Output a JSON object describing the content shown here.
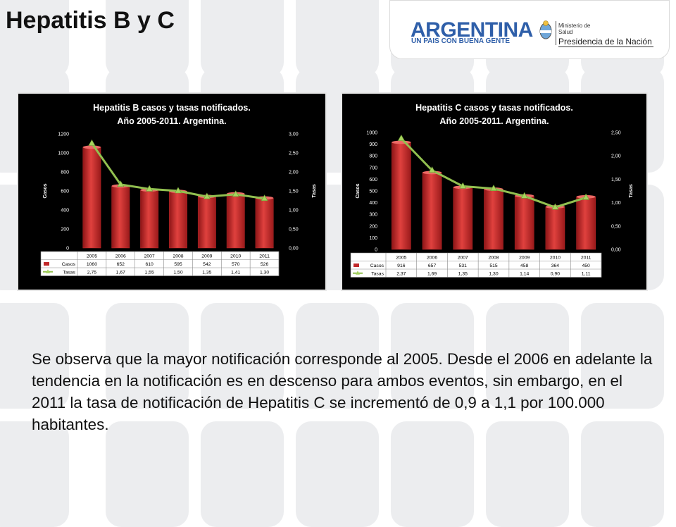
{
  "page": {
    "title": "Hepatitis B y C",
    "body_text": "Se observa que la mayor notificación corresponde al 2005. Desde el 2006 en adelante la tendencia en la notificación es en descenso para ambos eventos, sin embargo, en el 2011 la tasa de notificación de Hepatitis C se incrementó de 0,9 a 1,1 por 100.000 habitantes."
  },
  "banner": {
    "brand": "ARGENTINA",
    "slogan": "UN PAIS CON BUENA GENTE",
    "ministry_line1": "Ministerio de",
    "ministry_line2": "Salud",
    "presidency": "Presidencia de la Nación"
  },
  "colors": {
    "bar": "#c0282a",
    "line": "#92c050",
    "chart_bg": "#000000",
    "tile": "#ecedef"
  },
  "chart_data": [
    {
      "type": "bar",
      "title_line1": "Hepatitis B casos y tasas notificados.",
      "title_line2": "Año 2005-2011.  Argentina.",
      "categories": [
        "2005",
        "2006",
        "2007",
        "2008",
        "2009",
        "2010",
        "2011"
      ],
      "series": [
        {
          "name": "Casos",
          "type": "bar",
          "values": [
            1060,
            652,
            610,
            595,
            542,
            570,
            526
          ],
          "labels": [
            "1060",
            "652",
            "610",
            "595",
            "542",
            "570",
            "526"
          ]
        },
        {
          "name": "Tasas",
          "type": "line",
          "values": [
            2.75,
            1.67,
            1.55,
            1.5,
            1.35,
            1.41,
            1.3
          ],
          "labels": [
            "2,75",
            "1,67",
            "1,55",
            "1,50",
            "1,35",
            "1,41",
            "1,30"
          ]
        }
      ],
      "ylabel": "Casos",
      "y2label": "Tasas",
      "ylim": [
        0,
        1200
      ],
      "y2lim": [
        0,
        3
      ],
      "yticks": [
        "0",
        "200",
        "400",
        "600",
        "800",
        "1000",
        "1200"
      ],
      "y2ticks": [
        "0,00",
        "0,50",
        "1,00",
        "1,50",
        "2,00",
        "2,50",
        "3,00"
      ],
      "legend": "table-below"
    },
    {
      "type": "bar",
      "title_line1": "Hepatitis C casos y tasas notificados.",
      "title_line2": "Año 2005-2011.  Argentina.",
      "categories": [
        "2005",
        "2006",
        "2007",
        "2008",
        "2009",
        "2010",
        "2011"
      ],
      "series": [
        {
          "name": "Casos",
          "type": "bar",
          "values": [
            916,
            657,
            531,
            515,
            458,
            364,
            450
          ],
          "labels": [
            "916",
            "657",
            "531",
            "515",
            "458",
            "364",
            "450"
          ]
        },
        {
          "name": "Tasas",
          "type": "line",
          "values": [
            2.37,
            1.69,
            1.35,
            1.3,
            1.14,
            0.9,
            1.11
          ],
          "labels": [
            "2,37",
            "1,69",
            "1,35",
            "1,30",
            "1,14",
            "0,90",
            "1,11"
          ]
        }
      ],
      "ylabel": "Casos",
      "y2label": "Tasas",
      "ylim": [
        0,
        1000
      ],
      "y2lim": [
        0,
        2.5
      ],
      "yticks": [
        "0",
        "100",
        "200",
        "300",
        "400",
        "500",
        "600",
        "700",
        "800",
        "900",
        "1000"
      ],
      "y2ticks": [
        "0,00",
        "0,50",
        "1,00",
        "1,50",
        "2,00",
        "2,50"
      ],
      "legend": "table-below"
    }
  ]
}
